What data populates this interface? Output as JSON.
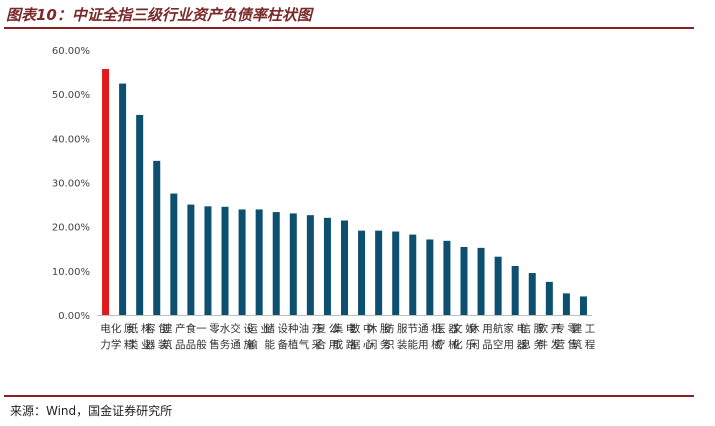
{
  "header": {
    "title": "图表10：中证全指三级行业资产负债率柱状图"
  },
  "footer": {
    "source": "来源：Wind，国金证券研究所"
  },
  "colors": {
    "bar": "#0d4f6e",
    "highlight": "#e31a1c",
    "rule": "#8a1f24"
  },
  "chart_data": {
    "type": "bar",
    "categories": [
      "电力",
      "化学原料",
      "纸类林业",
      "容器包装",
      "建筑产品",
      "食品",
      "一般零售",
      "水务",
      "交通设施",
      "运输业",
      "储能设备",
      "种植",
      "油气开采",
      "复合公用",
      "集成电路",
      "数据中心",
      "休闲服务",
      "纺织服装",
      "节能",
      "通用机械",
      "医疗器械",
      "文化娱乐",
      "休闲用品",
      "航空",
      "家用电器",
      "信息服务",
      "软件开发",
      "专营零售",
      "建筑工程"
    ],
    "values": [
      55.7,
      52.4,
      45.3,
      34.9,
      27.5,
      25.0,
      24.6,
      24.5,
      23.9,
      23.9,
      23.3,
      23.0,
      22.6,
      22.0,
      21.4,
      19.1,
      19.1,
      18.9,
      18.2,
      17.1,
      16.8,
      15.4,
      15.2,
      13.2,
      11.1,
      9.5,
      7.5,
      4.9,
      4.2
    ],
    "highlight_index": 0,
    "ylim": [
      0,
      60
    ],
    "yticks": [
      "0.00%",
      "10.00%",
      "20.00%",
      "30.00%",
      "40.00%",
      "50.00%",
      "60.00%"
    ],
    "ytick_values": [
      0,
      10,
      20,
      30,
      40,
      50,
      60
    ],
    "xlabel": "",
    "ylabel": "",
    "grid": false,
    "legend": "none"
  }
}
